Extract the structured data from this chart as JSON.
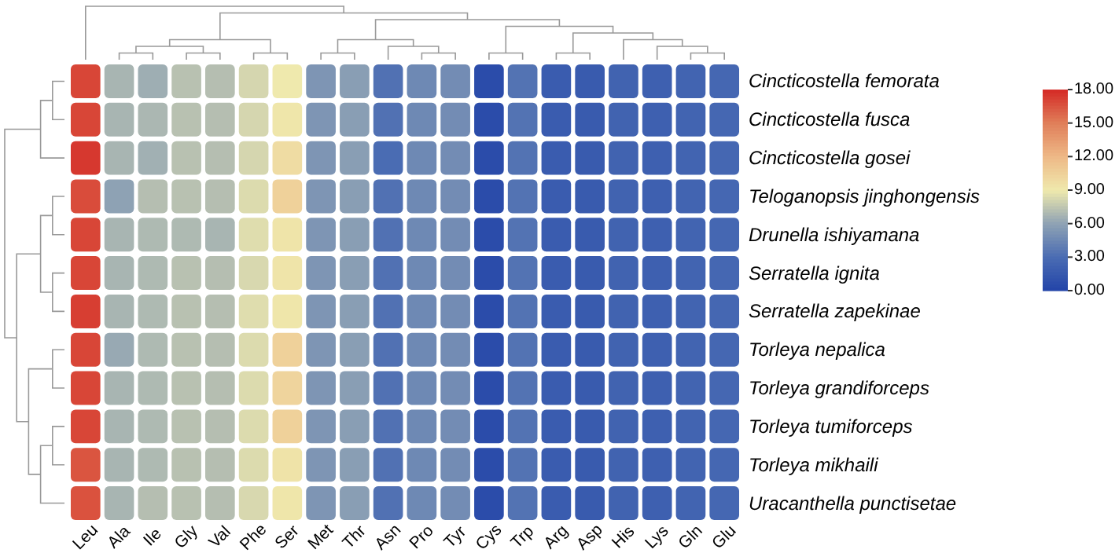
{
  "chart_data": {
    "type": "heatmap",
    "categories": [
      "Leu",
      "Ala",
      "Ile",
      "Gly",
      "Val",
      "Phe",
      "Ser",
      "Met",
      "Thr",
      "Asn",
      "Pro",
      "Tyr",
      "Cys",
      "Trp",
      "Arg",
      "Asp",
      "His",
      "Lys",
      "Gln",
      "Glu"
    ],
    "y_categories": [
      "Cincticostella femorata",
      "Cincticostella fusca",
      "Cincticostella gosei",
      "Teloganopsis jinghongensis",
      "Drunella ishiyamana",
      "Serratella ignita",
      "Serratella zapekinae",
      "Torleya nepalica",
      "Torleya grandiforceps",
      "Torleya tumiforceps",
      "Torleya mikhaili",
      "Uracanthella punctisetae"
    ],
    "cells": [
      [
        17.0,
        6.8,
        6.5,
        7.3,
        7.2,
        8.2,
        9.0,
        5.3,
        5.8,
        3.3,
        4.6,
        4.8,
        0.6,
        3.4,
        1.8,
        1.7,
        2.3,
        2.1,
        2.4,
        2.6
      ],
      [
        17.0,
        6.8,
        6.9,
        7.3,
        7.2,
        8.2,
        9.2,
        5.3,
        5.8,
        3.3,
        4.6,
        4.8,
        0.6,
        3.4,
        1.8,
        1.7,
        2.3,
        2.1,
        2.4,
        2.6
      ],
      [
        17.5,
        6.8,
        6.6,
        7.3,
        7.2,
        8.2,
        9.8,
        5.3,
        5.8,
        3.0,
        4.6,
        4.8,
        0.6,
        3.4,
        1.8,
        1.7,
        2.3,
        2.1,
        2.4,
        2.6
      ],
      [
        16.8,
        6.0,
        7.2,
        7.3,
        7.2,
        8.4,
        10.5,
        5.3,
        5.8,
        3.3,
        4.6,
        4.8,
        0.6,
        3.4,
        1.8,
        1.7,
        2.3,
        2.1,
        2.4,
        2.6
      ],
      [
        17.0,
        6.8,
        7.0,
        7.0,
        6.8,
        8.5,
        9.3,
        5.3,
        5.8,
        3.3,
        4.6,
        4.8,
        0.6,
        3.4,
        1.8,
        1.7,
        2.3,
        2.1,
        2.4,
        2.6
      ],
      [
        17.0,
        6.8,
        7.0,
        7.3,
        7.2,
        8.3,
        9.3,
        5.3,
        5.8,
        3.3,
        4.6,
        4.8,
        0.6,
        3.4,
        1.8,
        1.7,
        2.3,
        2.1,
        2.4,
        2.6
      ],
      [
        17.3,
        6.8,
        7.0,
        7.3,
        7.2,
        8.5,
        9.2,
        5.3,
        5.8,
        3.3,
        4.6,
        4.8,
        0.6,
        3.4,
        1.8,
        1.7,
        2.3,
        2.1,
        2.4,
        2.6
      ],
      [
        17.0,
        6.3,
        7.0,
        7.3,
        7.2,
        8.4,
        10.5,
        5.3,
        5.8,
        3.3,
        4.6,
        4.8,
        0.6,
        3.4,
        1.8,
        1.7,
        2.3,
        2.1,
        2.4,
        2.6
      ],
      [
        17.0,
        6.8,
        7.0,
        7.3,
        7.2,
        8.4,
        10.3,
        5.3,
        5.8,
        3.3,
        4.6,
        4.8,
        0.6,
        3.4,
        1.8,
        1.7,
        2.3,
        2.1,
        2.4,
        2.6
      ],
      [
        17.0,
        6.8,
        7.0,
        7.3,
        7.2,
        8.4,
        10.5,
        5.3,
        5.8,
        3.3,
        4.6,
        4.8,
        0.6,
        3.4,
        1.8,
        1.7,
        2.3,
        2.1,
        2.4,
        2.6
      ],
      [
        16.5,
        6.8,
        7.0,
        7.3,
        7.2,
        8.4,
        9.4,
        5.3,
        5.8,
        3.3,
        4.6,
        4.8,
        0.6,
        3.4,
        1.8,
        1.7,
        2.3,
        2.1,
        2.4,
        2.6
      ],
      [
        16.6,
        6.8,
        7.2,
        7.3,
        7.2,
        8.3,
        9.2,
        5.3,
        5.8,
        3.3,
        4.6,
        4.8,
        0.6,
        3.4,
        1.8,
        1.7,
        2.3,
        2.1,
        2.4,
        2.6
      ]
    ],
    "clim": [
      0,
      18
    ],
    "cticks": [
      {
        "value": 0,
        "label": "0.00"
      },
      {
        "value": 3,
        "label": "3.00"
      },
      {
        "value": 6,
        "label": "6.00"
      },
      {
        "value": 9,
        "label": "9.00"
      },
      {
        "value": 12,
        "label": "12.00"
      },
      {
        "value": 15,
        "label": "15.00"
      },
      {
        "value": 18,
        "label": "18.00"
      }
    ]
  }
}
